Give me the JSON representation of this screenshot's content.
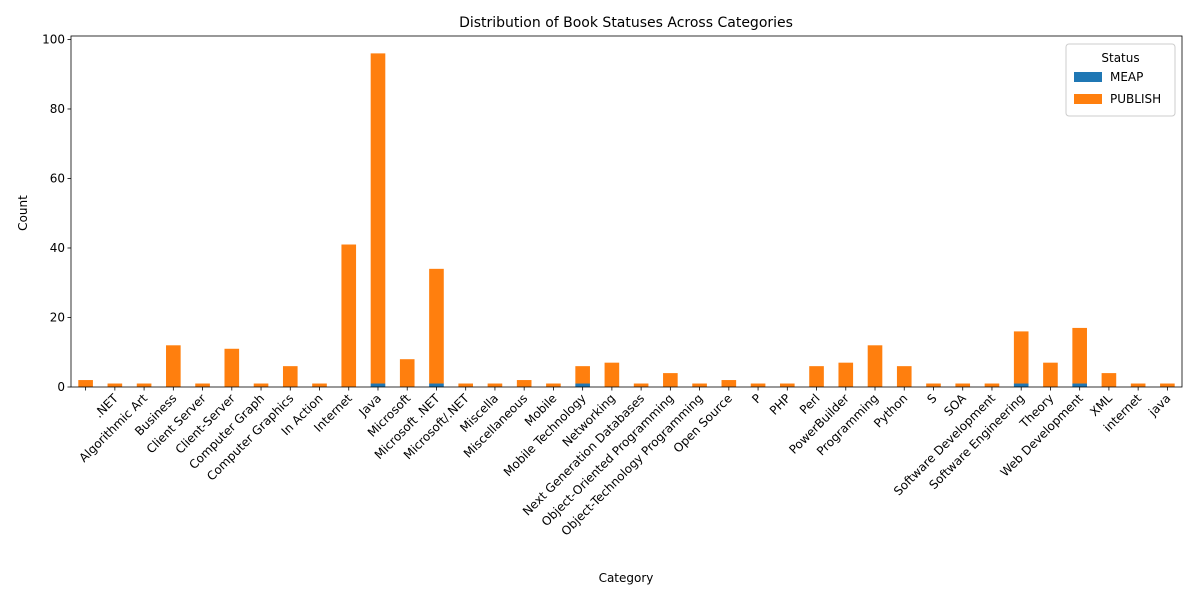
{
  "chart_data": {
    "type": "bar",
    "stacked": true,
    "title": "Distribution of Book Statuses Across Categories",
    "xlabel": "Category",
    "ylabel": "Count",
    "ylim": [
      0,
      101
    ],
    "yticks": [
      0,
      20,
      40,
      60,
      80,
      100
    ],
    "legend": {
      "title": "Status",
      "placement": "top-right"
    },
    "categories": [
      "",
      ".NET",
      "Algorithmic Art",
      "Business",
      "Client Server",
      "Client-Server",
      "Computer Graph",
      "Computer Graphics",
      "In Action",
      "Internet",
      "Java",
      "Microsoft",
      "Microsoft .NET",
      "Microsoft/.NET",
      "Miscella",
      "Miscellaneous",
      "Mobile",
      "Mobile Technology",
      "Networking",
      "Next Generation Databases",
      "Object-Oriented Programming",
      "Object-Technology Programming",
      "Open Source",
      "P",
      "PHP",
      "Perl",
      "PowerBuilder",
      "Programming",
      "Python",
      "S",
      "SOA",
      "Software Development",
      "Software Engineering",
      "Theory",
      "Web Development",
      "XML",
      "internet",
      "java"
    ],
    "series": [
      {
        "name": "MEAP",
        "color": "#1f77b4",
        "values": [
          0,
          0,
          0,
          0,
          0,
          0,
          0,
          0,
          0,
          0,
          1,
          0,
          1,
          0,
          0,
          0,
          0,
          1,
          0,
          0,
          0,
          0,
          0,
          0,
          0,
          0,
          0,
          0,
          0,
          0,
          0,
          0,
          1,
          0,
          1,
          0,
          0,
          0
        ]
      },
      {
        "name": "PUBLISH",
        "color": "#ff7f0e",
        "values": [
          2,
          1,
          1,
          12,
          1,
          11,
          1,
          6,
          1,
          41,
          95,
          8,
          33,
          1,
          1,
          2,
          1,
          5,
          7,
          1,
          4,
          1,
          2,
          1,
          1,
          6,
          7,
          12,
          6,
          1,
          1,
          1,
          15,
          7,
          16,
          4,
          1,
          1
        ]
      }
    ]
  }
}
